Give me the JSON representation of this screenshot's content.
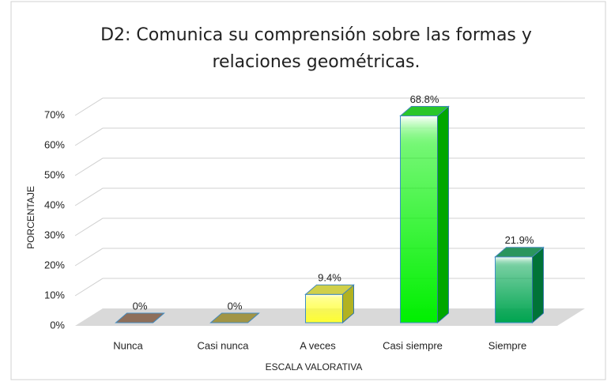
{
  "chart_data": {
    "type": "bar3d",
    "title": "D2: Comunica su comprensión sobre las formas y relaciones geométricas.",
    "y_label": "PORCENTAJE",
    "x_label": "ESCALA VALORATIVA",
    "categories": [
      "Nunca",
      "Casi nunca",
      "A veces",
      "Casi siempre",
      "Siempre"
    ],
    "values": [
      0,
      0,
      9.4,
      68.8,
      21.9
    ],
    "value_labels": [
      "0%",
      "0%",
      "9.4%",
      "68.8%",
      "21.9%"
    ],
    "colors": [
      "#9a6a4c",
      "#b7a52c",
      "#ffff30",
      "#00f000",
      "#00a550"
    ],
    "ylim": [
      0,
      70
    ],
    "yticks": [
      {
        "value": 0,
        "label": "0%"
      },
      {
        "value": 10,
        "label": "10%"
      },
      {
        "value": 20,
        "label": "20%"
      },
      {
        "value": 30,
        "label": "30%"
      },
      {
        "value": 40,
        "label": "40%"
      },
      {
        "value": 50,
        "label": "50%"
      },
      {
        "value": 60,
        "label": "60%"
      },
      {
        "value": 70,
        "label": "70%"
      }
    ],
    "grid": true
  }
}
